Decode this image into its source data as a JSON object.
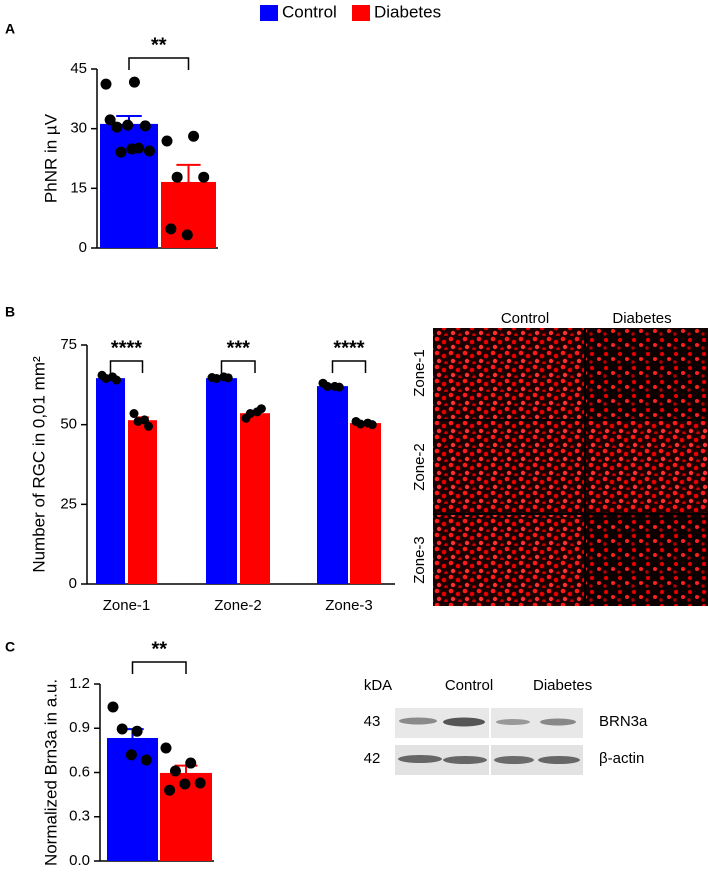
{
  "chart_data": [
    {
      "type": "bar",
      "panel": "A",
      "ylabel": "PhNR in µV",
      "categories": [
        null
      ],
      "ylim": [
        0,
        45
      ],
      "yticks": [
        0,
        15,
        30,
        45
      ],
      "series": [
        {
          "name": "Control",
          "color": "#0000ff",
          "values": [
            31.2
          ],
          "errors": [
            2.0
          ],
          "points": [
            [
              41.2,
              41.7,
              30.4,
              30.7,
              30.9,
              32.2,
              25.1,
              24.1,
              24.4,
              24.9
            ]
          ]
        },
        {
          "name": "Diabetes",
          "color": "#ff0000",
          "values": [
            16.6
          ],
          "errors": [
            4.3
          ],
          "points": [
            [
              26.9,
              28.1,
              17.8,
              17.8,
              3.3,
              4.8
            ]
          ]
        }
      ],
      "significance": [
        "**"
      ]
    },
    {
      "type": "bar",
      "panel": "B",
      "ylabel": "Number of RGC in 0,01 mm²",
      "categories": [
        "Zone-1",
        "Zone-2",
        "Zone-3"
      ],
      "ylim": [
        0,
        75
      ],
      "yticks": [
        0,
        25,
        50,
        75
      ],
      "series": [
        {
          "name": "Control",
          "color": "#0000ff",
          "values": [
            64.6,
            64.6,
            62.1
          ],
          "errors": [
            0.5,
            0.3,
            0.4
          ],
          "points": [
            [
              65.5,
              65,
              64.5,
              64
            ],
            [
              64.8,
              65,
              64.5,
              64.7
            ],
            [
              63,
              62,
              62,
              61.8
            ]
          ]
        },
        {
          "name": "Diabetes",
          "color": "#ff0000",
          "values": [
            51.4,
            53.6,
            50.5
          ],
          "errors": [
            0.9,
            0.6,
            0.3
          ],
          "points": [
            [
              53.5,
              51.5,
              51,
              49.5
            ],
            [
              52,
              54,
              53.5,
              55
            ],
            [
              51,
              50.5,
              50.2,
              50
            ]
          ]
        }
      ],
      "significance": [
        "****",
        "***",
        "****"
      ]
    },
    {
      "type": "bar",
      "panel": "C",
      "ylabel": "Normalized Brn3a in a.u.",
      "categories": [
        null
      ],
      "ylim": [
        0,
        1.2
      ],
      "yticks": [
        {
          "value": 0,
          "label": "0.0"
        },
        0.3,
        0.6,
        0.9,
        1.2
      ],
      "series": [
        {
          "name": "Control",
          "color": "#0000ff",
          "values": [
            0.834
          ],
          "errors": [
            0.06
          ],
          "points": [
            [
              1.044,
              0.88,
              0.895,
              0.685,
              0.72
            ]
          ]
        },
        {
          "name": "Diabetes",
          "color": "#ff0000",
          "values": [
            0.597
          ],
          "errors": [
            0.05
          ],
          "points": [
            [
              0.766,
              0.664,
              0.61,
              0.529,
              0.522,
              0.48
            ]
          ]
        }
      ],
      "significance": [
        "**"
      ]
    }
  ],
  "images": {
    "microscopy": {
      "columns": [
        "Control",
        "Diabetes"
      ],
      "rows": [
        "Zone-1",
        "Zone-2",
        "Zone-3"
      ]
    },
    "blot": {
      "unit": "kDA",
      "columns": [
        "Control",
        "Diabetes"
      ],
      "rows": [
        {
          "kda": 43,
          "label": "BRN3a"
        },
        {
          "kda": 42,
          "label": "β-actin"
        }
      ]
    }
  }
}
